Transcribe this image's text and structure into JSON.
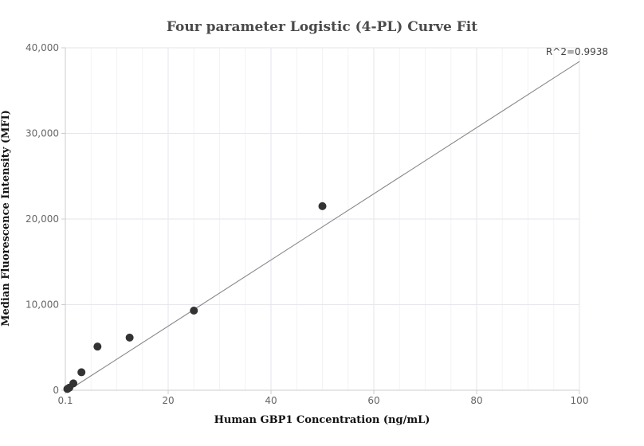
{
  "chart_data": {
    "type": "scatter",
    "title": "Four parameter Logistic (4-PL) Curve Fit",
    "xlabel": "Human GBP1 Concentration (ng/mL)",
    "ylabel": "Median Fluorescence Intensity (MFI)",
    "xlim": [
      0,
      100
    ],
    "ylim": [
      0,
      40000
    ],
    "x_ticks": [
      {
        "value": 0.1,
        "label": "0.1"
      },
      {
        "value": 20,
        "label": "20"
      },
      {
        "value": 40,
        "label": "40"
      },
      {
        "value": 60,
        "label": "60"
      },
      {
        "value": 80,
        "label": "80"
      },
      {
        "value": 100,
        "label": "100"
      }
    ],
    "y_ticks": [
      {
        "value": 0,
        "label": "0"
      },
      {
        "value": 10000,
        "label": "10,000"
      },
      {
        "value": 20000,
        "label": "20,000"
      },
      {
        "value": 30000,
        "label": "30,000"
      },
      {
        "value": 40000,
        "label": "40,000"
      }
    ],
    "grid": true,
    "series": [
      {
        "points": [
          {
            "x": 0.39,
            "y": 150
          },
          {
            "x": 0.78,
            "y": 300
          },
          {
            "x": 1.56,
            "y": 800
          },
          {
            "x": 3.13,
            "y": 2100
          },
          {
            "x": 6.25,
            "y": 5100
          },
          {
            "x": 12.5,
            "y": 6150
          },
          {
            "x": 25,
            "y": 9300
          },
          {
            "x": 50,
            "y": 21500
          }
        ],
        "color": "#333333"
      }
    ],
    "fit_curve": {
      "points": [
        {
          "x": 0.1,
          "y": -200
        },
        {
          "x": 100,
          "y": 38400
        }
      ],
      "color": "#888888"
    },
    "annotation": "R^2=0.9938"
  }
}
